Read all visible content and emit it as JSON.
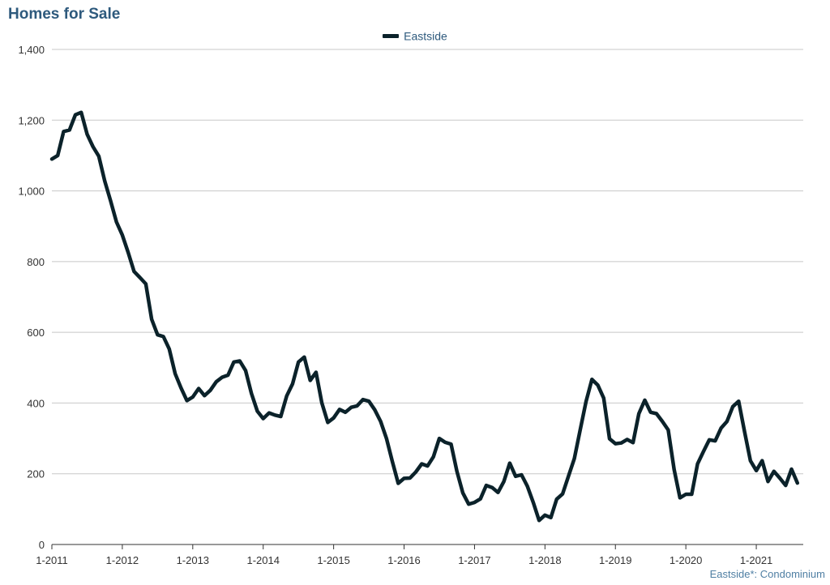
{
  "chart_data": {
    "type": "line",
    "title": "Homes for Sale",
    "legend": {
      "placement": "top-center"
    },
    "grid": true,
    "ylim": [
      0,
      1400
    ],
    "yticks": [
      "0",
      "200",
      "400",
      "600",
      "800",
      "1,000",
      "1,200",
      "1,400"
    ],
    "ytick_values": [
      0,
      200,
      400,
      600,
      800,
      1000,
      1200,
      1400
    ],
    "xticks": [
      "1-2011",
      "1-2012",
      "1-2013",
      "1-2014",
      "1-2015",
      "1-2016",
      "1-2017",
      "1-2018",
      "1-2019",
      "1-2020",
      "1-2021"
    ],
    "x_start": "2011-01",
    "x_end": "2021-08",
    "series": [
      {
        "name": "Eastside",
        "color": "#0b222a",
        "values": [
          1090,
          1100,
          1168,
          1172,
          1215,
          1222,
          1160,
          1125,
          1098,
          1028,
          972,
          912,
          875,
          826,
          772,
          755,
          737,
          637,
          593,
          588,
          553,
          483,
          443,
          407,
          417,
          441,
          421,
          436,
          460,
          473,
          479,
          516,
          519,
          492,
          427,
          377,
          356,
          372,
          366,
          362,
          420,
          454,
          516,
          530,
          464,
          487,
          400,
          345,
          358,
          382,
          374,
          388,
          392,
          410,
          405,
          381,
          348,
          300,
          235,
          173,
          187,
          188,
          205,
          228,
          222,
          248,
          300,
          289,
          284,
          207,
          146,
          114,
          119,
          129,
          167,
          161,
          147,
          178,
          230,
          193,
          197,
          165,
          119,
          68,
          83,
          76,
          128,
          143,
          193,
          243,
          324,
          404,
          467,
          451,
          414,
          299,
          285,
          287,
          297,
          288,
          370,
          408,
          374,
          370,
          348,
          324,
          212,
          132,
          142,
          142,
          228,
          263,
          296,
          293,
          329,
          348,
          390,
          405,
          319,
          237,
          209,
          237,
          178,
          207,
          188,
          167,
          213,
          174
        ]
      }
    ],
    "footnote": "Eastside*: Condominium"
  }
}
